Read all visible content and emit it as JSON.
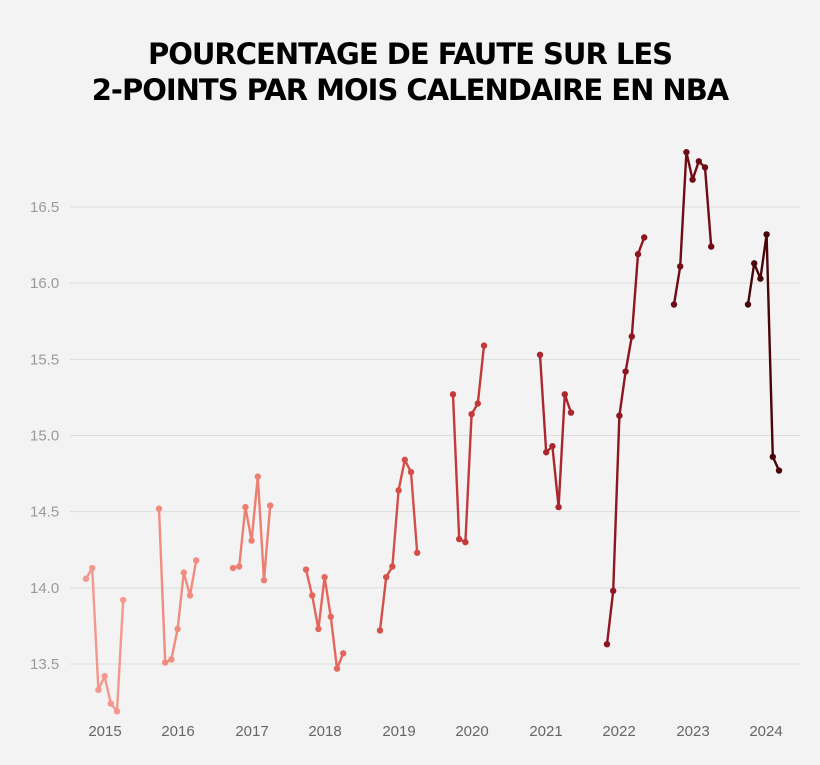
{
  "title_lines": [
    "POURCENTAGE DE FAUTE SUR LES",
    "2-POINTS PAR MOIS CALENDAIRE EN NBA"
  ],
  "chart_data": {
    "type": "line",
    "title": "POURCENTAGE DE FAUTE SUR LES 2-POINTS PAR MOIS CALENDAIRE EN NBA",
    "xlabel": "",
    "ylabel": "",
    "ylim": [
      13.1,
      17.1
    ],
    "yticks": [
      13.5,
      14.0,
      14.5,
      15.0,
      15.5,
      16.0,
      16.5
    ],
    "ytick_labels": [
      "13.5",
      "14.0",
      "14.5",
      "15.0",
      "15.5",
      "16.0",
      "16.5"
    ],
    "grid": true,
    "legend": "none",
    "x_unit": "season month index (0 = first month of season)",
    "series": [
      {
        "name": "2015",
        "color": "#f4978e",
        "values": [
          14.06,
          14.13,
          13.33,
          13.42,
          13.24,
          13.19,
          13.92
        ]
      },
      {
        "name": "2016",
        "color": "#f08c80",
        "values": [
          14.52,
          13.51,
          13.53,
          13.73,
          14.1,
          13.95,
          14.18
        ]
      },
      {
        "name": "2017",
        "color": "#ec7f72",
        "values": [
          14.13,
          14.14,
          14.53,
          14.31,
          14.73,
          14.05,
          14.54
        ]
      },
      {
        "name": "2018",
        "color": "#e3675d",
        "values": [
          14.12,
          13.95,
          13.73,
          14.07,
          13.81,
          13.47,
          13.57
        ]
      },
      {
        "name": "2019",
        "color": "#d2504b",
        "values": [
          13.72,
          14.07,
          14.14,
          14.64,
          14.84,
          14.76,
          14.23
        ]
      },
      {
        "name": "2020",
        "color": "#c23a3a",
        "values": [
          15.27,
          14.32,
          14.3,
          15.14,
          15.21,
          15.59
        ]
      },
      {
        "name": "2021",
        "color": "#a9272d",
        "values": [
          15.53,
          14.89,
          14.93,
          14.53,
          15.27,
          15.15
        ]
      },
      {
        "name": "2022",
        "color": "#8e1620",
        "values": [
          13.63,
          13.98,
          15.13,
          15.42,
          15.65,
          16.19,
          16.3
        ]
      },
      {
        "name": "2023",
        "color": "#6f0c15",
        "values": [
          15.86,
          16.11,
          16.86,
          16.68,
          16.8,
          16.76,
          16.24
        ]
      },
      {
        "name": "2024",
        "color": "#4a0509",
        "values": [
          15.86,
          16.13,
          16.03,
          16.32,
          14.86,
          14.77
        ]
      }
    ]
  }
}
